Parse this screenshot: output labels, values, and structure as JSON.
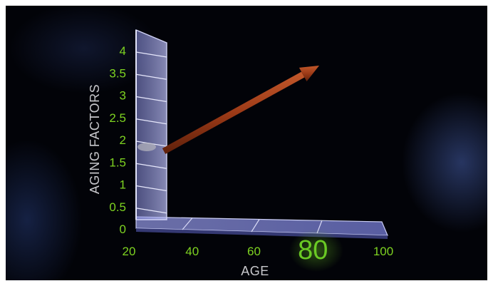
{
  "chart_data": {
    "type": "line",
    "xlabel": "AGE",
    "ylabel": "AGING FACTORS",
    "x_ticks": [
      "20",
      "40",
      "60",
      "80",
      "100"
    ],
    "y_ticks": [
      "0",
      "0.5",
      "1",
      "1.5",
      "2",
      "2.5",
      "3",
      "3.5",
      "4"
    ],
    "highlighted_tick": "80",
    "xlim": [
      20,
      100
    ],
    "ylim": [
      0,
      4
    ],
    "arrow": {
      "start": {
        "x": 28,
        "y": 1.75
      },
      "end": {
        "x": 80,
        "y": 3.7
      }
    },
    "colors": {
      "tick_text": "#7ed321",
      "axis_label": "#c8c8cc",
      "arrow": "#a8421e",
      "panel": "#7f84d6",
      "background": "#020308"
    }
  }
}
